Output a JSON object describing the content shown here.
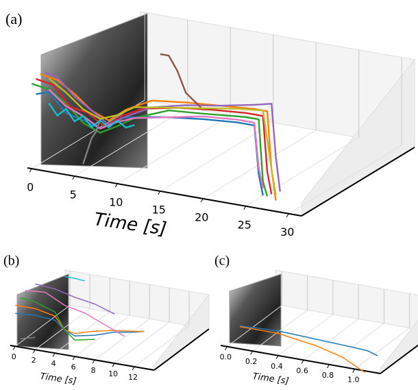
{
  "chart_data": [
    {
      "type": "trajectory3d",
      "title": "(a)",
      "xlabel": "Time [s]",
      "xlim": [
        -0.5,
        31.5
      ],
      "xticks": [
        0,
        5,
        10,
        15,
        20,
        25,
        30
      ],
      "zlim": [
        0,
        1
      ],
      "series": [
        {
          "color": "#1f77b4",
          "x": [
            0.5,
            2,
            4,
            6,
            8,
            10,
            13,
            16,
            20,
            24,
            26,
            26.5,
            27
          ],
          "values": [
            0.55,
            0.58,
            0.45,
            0.42,
            0.38,
            0.48,
            0.52,
            0.55,
            0.58,
            0.6,
            0.6,
            0.25,
            0.1
          ]
        },
        {
          "color": "#ff7f0e",
          "x": [
            1,
            3,
            5,
            7,
            9,
            11,
            14,
            18,
            22,
            26,
            27.5,
            28,
            28.5
          ],
          "values": [
            0.7,
            0.68,
            0.6,
            0.5,
            0.45,
            0.55,
            0.65,
            0.68,
            0.7,
            0.72,
            0.72,
            0.3,
            0.08
          ]
        },
        {
          "color": "#2ca02c",
          "x": [
            0,
            2,
            4,
            6,
            8,
            10,
            12,
            16,
            20,
            25,
            26.5,
            27,
            27.5
          ],
          "values": [
            0.62,
            0.6,
            0.52,
            0.4,
            0.35,
            0.42,
            0.5,
            0.6,
            0.62,
            0.65,
            0.65,
            0.2,
            0.1
          ]
        },
        {
          "color": "#d62728",
          "x": [
            0.5,
            2.5,
            4.5,
            6.5,
            8.5,
            10.5,
            13,
            17,
            21,
            25,
            27,
            27.5,
            28
          ],
          "values": [
            0.66,
            0.64,
            0.5,
            0.48,
            0.4,
            0.5,
            0.58,
            0.63,
            0.66,
            0.68,
            0.68,
            0.28,
            0.12
          ]
        },
        {
          "color": "#9467bd",
          "x": [
            1.5,
            3,
            5,
            7,
            9,
            11,
            14,
            18,
            22,
            26,
            28,
            28.5,
            29
          ],
          "values": [
            0.72,
            0.7,
            0.58,
            0.5,
            0.42,
            0.5,
            0.6,
            0.66,
            0.7,
            0.75,
            0.78,
            0.4,
            0.15
          ]
        },
        {
          "color": "#8c564b",
          "x": [
            15,
            16,
            17,
            18,
            19,
            20
          ],
          "values": [
            1.0,
            1.0,
            0.9,
            0.75,
            0.7,
            0.65
          ]
        },
        {
          "color": "#e377c2",
          "x": [
            2,
            4,
            6,
            8,
            10,
            12,
            16,
            20,
            24,
            26,
            26.5,
            27
          ],
          "values": [
            0.6,
            0.5,
            0.45,
            0.38,
            0.45,
            0.5,
            0.55,
            0.6,
            0.62,
            0.62,
            0.3,
            0.15
          ]
        },
        {
          "color": "#7f7f7f",
          "x": [
            6,
            6.5,
            7,
            7.5,
            8
          ],
          "values": [
            0.1,
            0.2,
            0.3,
            0.35,
            0.45
          ]
        },
        {
          "color": "#bcbd22",
          "x": [
            2,
            4,
            6,
            8,
            10,
            12,
            16,
            20,
            24,
            27,
            28,
            28.5
          ],
          "values": [
            0.68,
            0.6,
            0.5,
            0.45,
            0.5,
            0.58,
            0.62,
            0.66,
            0.7,
            0.72,
            0.3,
            0.12
          ]
        },
        {
          "color": "#17becf",
          "x": [
            2,
            3,
            4,
            5,
            6,
            7,
            8,
            9,
            10,
            11,
            12
          ],
          "values": [
            0.5,
            0.42,
            0.48,
            0.4,
            0.45,
            0.38,
            0.44,
            0.4,
            0.46,
            0.42,
            0.45
          ]
        }
      ]
    },
    {
      "type": "trajectory3d",
      "title": "(b)",
      "xlabel": "Time [s]",
      "xlim": [
        -0.5,
        14
      ],
      "xticks": [
        0,
        2,
        4,
        6,
        8,
        10,
        12
      ],
      "zlim": [
        0,
        1
      ],
      "series": [
        {
          "color": "#1f77b4",
          "x": [
            0,
            2,
            4,
            5,
            6,
            8,
            10,
            12,
            13
          ],
          "values": [
            0.4,
            0.42,
            0.4,
            0.3,
            0.25,
            0.3,
            0.38,
            0.42,
            0.45
          ]
        },
        {
          "color": "#ff7f0e",
          "x": [
            0,
            2,
            4,
            5,
            6,
            8,
            10,
            12,
            13
          ],
          "values": [
            0.5,
            0.5,
            0.45,
            0.3,
            0.28,
            0.35,
            0.4,
            0.43,
            0.45
          ]
        },
        {
          "color": "#2ca02c",
          "x": [
            0.5,
            2,
            4,
            5,
            6,
            8
          ],
          "values": [
            0.6,
            0.58,
            0.5,
            0.3,
            0.2,
            0.25
          ]
        },
        {
          "color": "#e377c2",
          "x": [
            1,
            3,
            5,
            7,
            9,
            11
          ],
          "values": [
            0.7,
            0.72,
            0.6,
            0.55,
            0.45,
            0.35
          ]
        },
        {
          "color": "#9467bd",
          "x": [
            2,
            4,
            6,
            8,
            10
          ],
          "values": [
            0.8,
            0.78,
            0.72,
            0.68,
            0.6
          ]
        },
        {
          "color": "#17becf",
          "x": [
            5,
            6,
            7
          ],
          "values": [
            0.95,
            0.95,
            0.94
          ]
        },
        {
          "color": "#7f7f7f",
          "x": [
            0.5,
            1,
            2
          ],
          "values": [
            0.1,
            0.12,
            0.15
          ]
        }
      ]
    },
    {
      "type": "trajectory3d",
      "title": "(c)",
      "xlabel": "Time [s]",
      "xlim": [
        -0.05,
        1.2
      ],
      "xticks": [
        {
          "value": 0,
          "label": "0.0"
        },
        {
          "value": 0.2,
          "label": "0.2"
        },
        {
          "value": 0.4,
          "label": "0.4"
        },
        {
          "value": 0.6,
          "label": "0.6"
        },
        {
          "value": 0.8,
          "label": "0.8"
        },
        {
          "value": 1,
          "label": "1.0"
        }
      ],
      "zlim": [
        0,
        1
      ],
      "series": [
        {
          "color": "#1f77b4",
          "x": [
            0.1,
            0.4,
            0.7,
            1.0,
            1.1,
            1.18
          ],
          "values": [
            0.28,
            0.3,
            0.28,
            0.26,
            0.25,
            0.21
          ]
        },
        {
          "color": "#ff7f0e",
          "x": [
            0.1,
            0.4,
            0.7,
            0.9,
            1.08
          ],
          "values": [
            0.27,
            0.27,
            0.2,
            0.12,
            -0.02
          ]
        }
      ]
    }
  ]
}
